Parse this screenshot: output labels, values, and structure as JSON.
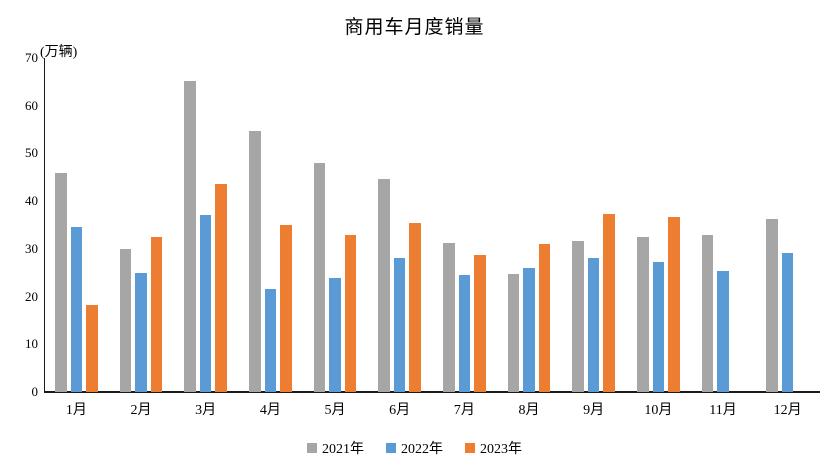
{
  "title": "商用车月度销量",
  "unit_label": "(万辆)",
  "chart_data": {
    "type": "bar",
    "title": "商用车月度销量",
    "unit": "万辆",
    "categories": [
      "1月",
      "2月",
      "3月",
      "4月",
      "5月",
      "6月",
      "7月",
      "8月",
      "9月",
      "10月",
      "11月",
      "12月"
    ],
    "series": [
      {
        "name": "2021年",
        "color": "#A6A6A6",
        "values": [
          46.0,
          29.9,
          65.2,
          54.8,
          48.1,
          44.6,
          31.2,
          24.8,
          31.7,
          32.5,
          33.0,
          36.3
        ]
      },
      {
        "name": "2022年",
        "color": "#5B9BD5",
        "values": [
          34.5,
          25.0,
          37.0,
          21.6,
          23.9,
          28.1,
          24.6,
          25.9,
          28.0,
          27.2,
          25.3,
          29.1
        ]
      },
      {
        "name": "2023年",
        "color": "#ED7D31",
        "values": [
          18.2,
          32.4,
          43.5,
          34.9,
          33.0,
          35.5,
          28.8,
          31.1,
          37.3,
          36.6,
          null,
          null
        ]
      }
    ],
    "ylim": [
      0,
      70
    ],
    "yticks": [
      0,
      10,
      20,
      30,
      40,
      50,
      60,
      70
    ],
    "grid": false,
    "legend_position": "bottom",
    "axis_color": "#1a1a1a",
    "background": "#ffffff"
  }
}
